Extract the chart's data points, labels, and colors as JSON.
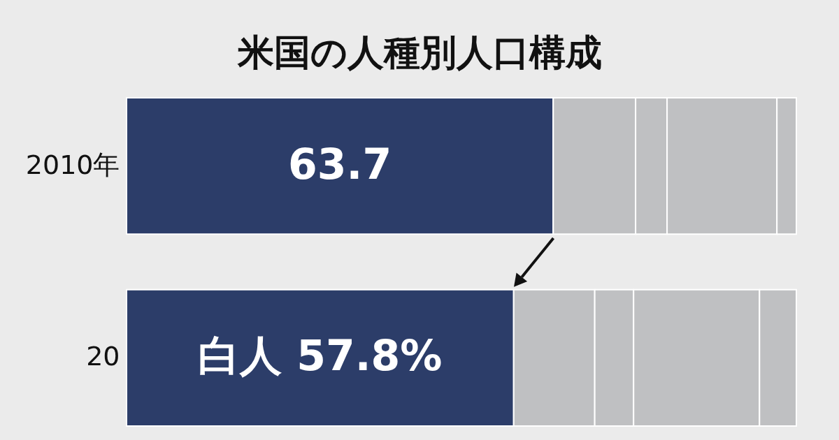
{
  "chart_data": {
    "type": "bar",
    "title": "米国の人種別人口構成",
    "orientation": "horizontal",
    "stacked": true,
    "categories": [
      "2010年",
      "20"
    ],
    "xlim": [
      0,
      100
    ],
    "tick_labels": "y",
    "series": [
      {
        "color": "#2c3d69",
        "values": [
          63.7,
          57.8
        ],
        "value_labels": [
          "63.7",
          "白人 57.8%"
        ]
      },
      {
        "color": "#bfc0c2",
        "values": [
          12.3,
          12.1
        ]
      },
      {
        "color": "#bfc0c2",
        "values": [
          4.7,
          5.8
        ]
      },
      {
        "color": "#bfc0c2",
        "values": [
          16.4,
          18.8
        ]
      },
      {
        "color": "#bfc0c2",
        "values": [
          2.9,
          5.5
        ]
      }
    ]
  }
}
